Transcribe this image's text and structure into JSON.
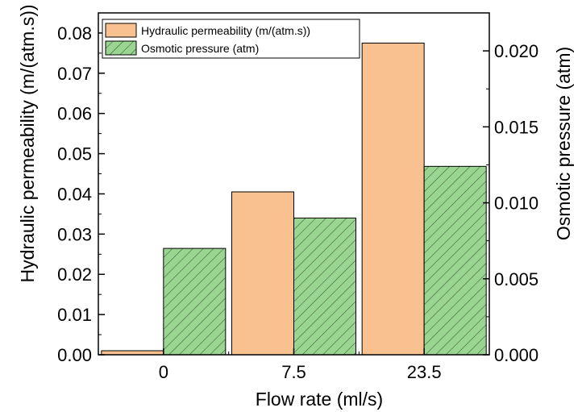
{
  "chart_data": {
    "type": "bar",
    "categories": [
      "0",
      "7.5",
      "23.5"
    ],
    "xlabel": "Flow rate (ml/s)",
    "ylabel_left": "Hydraulic permeability (m/(atm.s))",
    "ylabel_right": "Osmotic pressure (atm)",
    "ylim_left": [
      0,
      0.085
    ],
    "ylim_right": [
      0,
      0.0225
    ],
    "yticks_left": [
      "0.00",
      "0.01",
      "0.02",
      "0.03",
      "0.04",
      "0.05",
      "0.06",
      "0.07",
      "0.08"
    ],
    "yticks_right": [
      "0.000",
      "0.005",
      "0.010",
      "0.015",
      "0.020"
    ],
    "series": [
      {
        "name": "Hydraulic permeability (m/(atm.s))",
        "axis": "left",
        "values": [
          0.001,
          0.0405,
          0.0775
        ],
        "color": "#f9c18f",
        "pattern": "solid"
      },
      {
        "name": "Osmotic pressure (atm)",
        "axis": "right",
        "values": [
          0.007,
          0.009,
          0.0124
        ],
        "color": "#9ad591",
        "pattern": "hatched"
      }
    ],
    "legend_position": "top-left",
    "grid": false
  }
}
